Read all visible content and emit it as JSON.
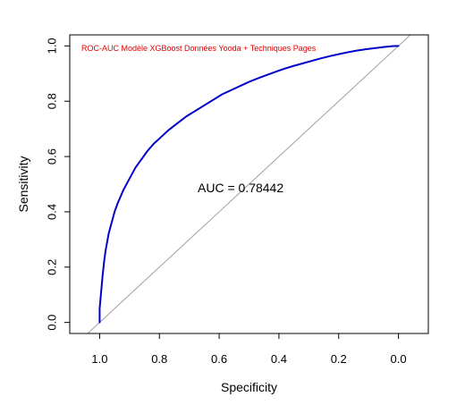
{
  "chart_data": {
    "type": "line",
    "title": "",
    "xlabel": "Specificity",
    "ylabel": "Sensitivity",
    "x_reversed": true,
    "xlim": [
      1.1,
      -0.1
    ],
    "ylim": [
      -0.04,
      1.04
    ],
    "xticks": [
      1.0,
      0.8,
      0.6,
      0.4,
      0.2,
      0.0
    ],
    "xtick_labels": [
      "1.0",
      "0.8",
      "0.6",
      "0.4",
      "0.2",
      "0.0"
    ],
    "yticks": [
      0.0,
      0.2,
      0.4,
      0.6,
      0.8,
      1.0
    ],
    "ytick_labels": [
      "0.0",
      "0.2",
      "0.4",
      "0.6",
      "0.8",
      "1.0"
    ],
    "grid": false,
    "annotations": {
      "legend_text": "ROC-AUC Modèle XGBoost Données Yooda + Techniques Pages",
      "auc_label": "AUC =",
      "auc_value": "0.78442"
    },
    "colors": {
      "roc_curve": "#0000CC",
      "diagonal": "#a0a0a0",
      "legend_text": "#e00000"
    },
    "reference_line": {
      "from": [
        1.0,
        0.0
      ],
      "to": [
        0.0,
        1.0
      ]
    },
    "series": [
      {
        "x": [
          1.0,
          1.0,
          0.995,
          0.99,
          0.985,
          0.98,
          0.975,
          0.97,
          0.96,
          0.95,
          0.94,
          0.92,
          0.9,
          0.88,
          0.86,
          0.84,
          0.82,
          0.8,
          0.77,
          0.74,
          0.71,
          0.68,
          0.65,
          0.62,
          0.59,
          0.56,
          0.53,
          0.5,
          0.47,
          0.44,
          0.41,
          0.38,
          0.35,
          0.32,
          0.29,
          0.26,
          0.23,
          0.2,
          0.17,
          0.14,
          0.11,
          0.08,
          0.05,
          0.02,
          0.0
        ],
        "y": [
          0.0,
          0.05,
          0.11,
          0.17,
          0.22,
          0.26,
          0.29,
          0.32,
          0.36,
          0.4,
          0.43,
          0.48,
          0.52,
          0.56,
          0.59,
          0.62,
          0.645,
          0.665,
          0.695,
          0.72,
          0.745,
          0.765,
          0.785,
          0.805,
          0.825,
          0.84,
          0.855,
          0.87,
          0.883,
          0.895,
          0.907,
          0.918,
          0.928,
          0.937,
          0.946,
          0.955,
          0.963,
          0.97,
          0.977,
          0.983,
          0.988,
          0.992,
          0.996,
          0.999,
          1.0
        ]
      }
    ]
  }
}
